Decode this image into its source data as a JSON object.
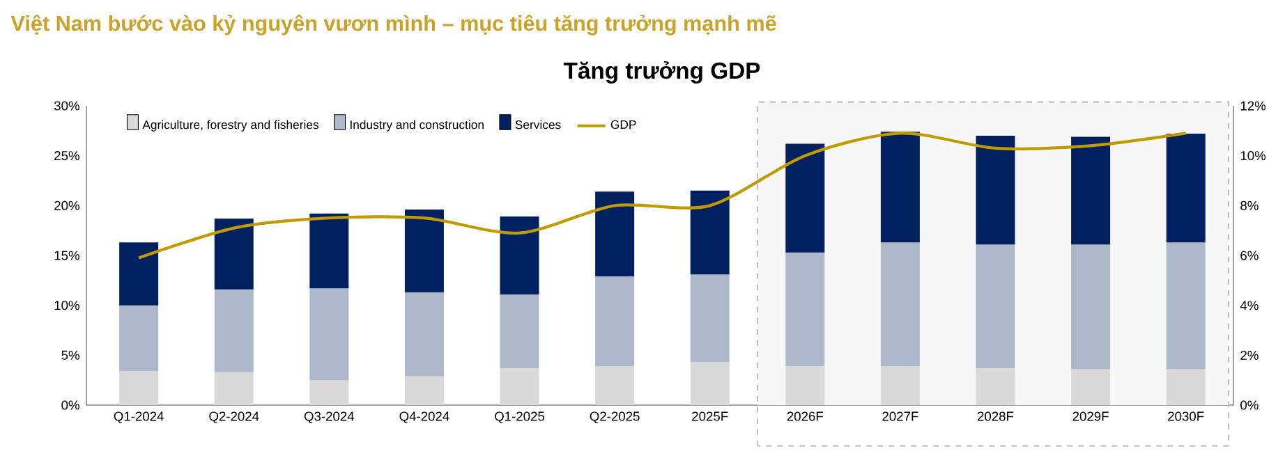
{
  "chart_data": {
    "type": "bar",
    "stacked": true,
    "title": "Việt Nam bước vào kỷ nguyên vươn mình – mục tiêu tăng trưởng mạnh mẽ",
    "subtitle": "Tăng trưởng GDP",
    "categories": [
      "Q1-2024",
      "Q2-2024",
      "Q3-2024",
      "Q4-2024",
      "Q1-2025",
      "Q2-2025",
      "2025F",
      "2026F",
      "2027F",
      "2028F",
      "2029F",
      "2030F"
    ],
    "series": [
      {
        "name": "Agriculture, forestry and fisheries",
        "color": "#d9d9d9",
        "values": [
          3.4,
          3.3,
          2.5,
          2.9,
          3.7,
          3.9,
          4.3,
          3.9,
          3.9,
          3.7,
          3.6,
          3.6
        ]
      },
      {
        "name": "Industry and construction",
        "color": "#adb9ca",
        "values": [
          6.6,
          8.3,
          9.2,
          8.4,
          7.4,
          9.0,
          8.8,
          11.4,
          12.4,
          12.4,
          12.5,
          12.7
        ]
      },
      {
        "name": "Services",
        "color": "#002060",
        "values": [
          6.3,
          7.1,
          7.5,
          8.3,
          7.8,
          8.5,
          8.4,
          10.9,
          11.1,
          10.9,
          10.8,
          10.9
        ]
      },
      {
        "name": "GDP",
        "type": "line",
        "axis": "y2",
        "color": "#c09b00",
        "values": [
          5.9,
          7.1,
          7.5,
          7.5,
          6.9,
          8.0,
          8.0,
          10.0,
          10.9,
          10.3,
          10.4,
          10.9
        ]
      }
    ],
    "ylim": [
      0,
      30
    ],
    "yticks": [
      {
        "value": 0,
        "label": "0%"
      },
      {
        "value": 5,
        "label": "5%"
      },
      {
        "value": 10,
        "label": "10%"
      },
      {
        "value": 15,
        "label": "15%"
      },
      {
        "value": 20,
        "label": "20%"
      },
      {
        "value": 25,
        "label": "25%"
      },
      {
        "value": 30,
        "label": "30%"
      }
    ],
    "y2lim": [
      0,
      12
    ],
    "y2ticks": [
      {
        "value": 0,
        "label": "0%"
      },
      {
        "value": 2,
        "label": "2%"
      },
      {
        "value": 4,
        "label": "4%"
      },
      {
        "value": 6,
        "label": "6%"
      },
      {
        "value": 8,
        "label": "8%"
      },
      {
        "value": 10,
        "label": "10%"
      },
      {
        "value": 12,
        "label": "12%"
      }
    ],
    "bands": [
      {
        "axis": "x",
        "from": "2026F",
        "to": "2030F",
        "color": "#f7f7f7"
      }
    ],
    "legend": "top left"
  }
}
